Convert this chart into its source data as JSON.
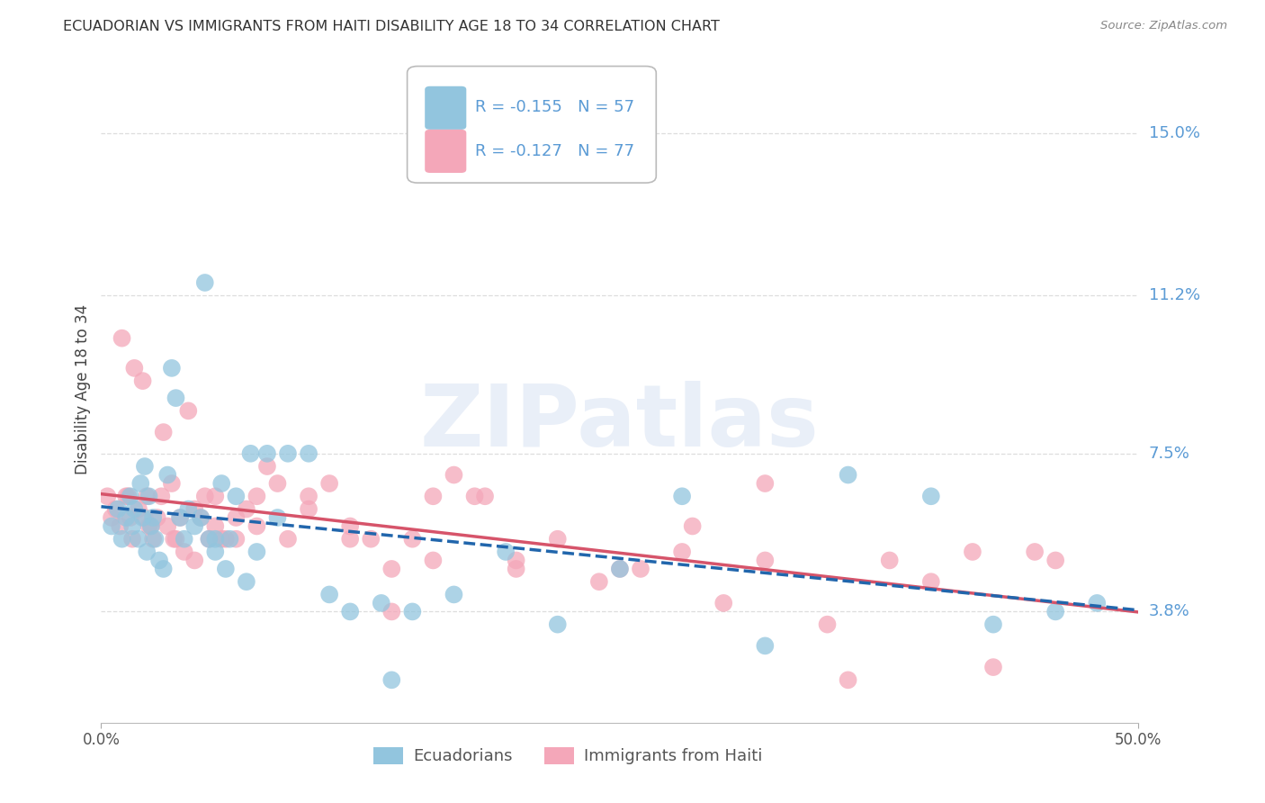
{
  "title": "ECUADORIAN VS IMMIGRANTS FROM HAITI DISABILITY AGE 18 TO 34 CORRELATION CHART",
  "source": "Source: ZipAtlas.com",
  "ylabel": "Disability Age 18 to 34",
  "ytick_labels": [
    "3.8%",
    "7.5%",
    "11.2%",
    "15.0%"
  ],
  "ytick_values": [
    3.8,
    7.5,
    11.2,
    15.0
  ],
  "xmin": 0.0,
  "xmax": 50.0,
  "ymin": 1.2,
  "ymax": 16.8,
  "color_blue": "#92C5DE",
  "color_pink": "#F4A7B9",
  "trendline_blue": "#2166AC",
  "trendline_pink": "#D6546A",
  "R_blue": -0.155,
  "N_blue": 57,
  "R_pink": -0.127,
  "N_pink": 77,
  "legend_label_blue": "Ecuadorians",
  "legend_label_pink": "Immigrants from Haiti",
  "blue_x": [
    0.5,
    0.8,
    1.0,
    1.2,
    1.4,
    1.5,
    1.6,
    1.8,
    1.9,
    2.0,
    2.1,
    2.2,
    2.3,
    2.4,
    2.5,
    2.6,
    2.8,
    3.0,
    3.2,
    3.4,
    3.6,
    3.8,
    4.0,
    4.2,
    4.5,
    4.8,
    5.0,
    5.2,
    5.5,
    5.8,
    6.0,
    6.2,
    6.5,
    7.0,
    7.5,
    8.0,
    9.0,
    10.0,
    11.0,
    12.0,
    13.5,
    15.0,
    17.0,
    19.5,
    22.0,
    25.0,
    28.0,
    32.0,
    36.0,
    40.0,
    43.0,
    46.0,
    48.0,
    7.2,
    8.5,
    5.5,
    14.0
  ],
  "blue_y": [
    5.8,
    6.2,
    5.5,
    6.0,
    6.5,
    5.8,
    6.2,
    5.5,
    6.8,
    6.0,
    7.2,
    5.2,
    6.5,
    5.8,
    6.0,
    5.5,
    5.0,
    4.8,
    7.0,
    9.5,
    8.8,
    6.0,
    5.5,
    6.2,
    5.8,
    6.0,
    11.5,
    5.5,
    5.2,
    6.8,
    4.8,
    5.5,
    6.5,
    4.5,
    5.2,
    7.5,
    7.5,
    7.5,
    4.2,
    3.8,
    4.0,
    3.8,
    4.2,
    5.2,
    3.5,
    4.8,
    6.5,
    3.0,
    7.0,
    6.5,
    3.5,
    3.8,
    4.0,
    7.5,
    6.0,
    5.5,
    2.2
  ],
  "pink_x": [
    0.3,
    0.5,
    0.7,
    0.9,
    1.0,
    1.2,
    1.4,
    1.5,
    1.6,
    1.8,
    2.0,
    2.1,
    2.2,
    2.4,
    2.5,
    2.7,
    2.9,
    3.0,
    3.2,
    3.4,
    3.6,
    3.8,
    4.0,
    4.2,
    4.5,
    4.8,
    5.0,
    5.2,
    5.5,
    5.8,
    6.0,
    6.5,
    7.0,
    7.5,
    8.0,
    9.0,
    10.0,
    11.0,
    12.0,
    13.0,
    14.0,
    15.0,
    16.0,
    17.0,
    18.5,
    20.0,
    22.0,
    24.0,
    26.0,
    28.5,
    30.0,
    32.0,
    35.0,
    40.0,
    43.0,
    46.0,
    36.0,
    1.3,
    2.3,
    3.5,
    4.5,
    5.5,
    6.5,
    7.5,
    8.5,
    10.0,
    12.0,
    14.0,
    16.0,
    18.0,
    20.0,
    25.0,
    28.0,
    32.0,
    38.0,
    42.0,
    45.0
  ],
  "pink_y": [
    6.5,
    6.0,
    6.2,
    5.8,
    10.2,
    6.5,
    6.0,
    5.5,
    9.5,
    6.2,
    9.2,
    6.0,
    6.5,
    5.8,
    5.5,
    6.0,
    6.5,
    8.0,
    5.8,
    6.8,
    5.5,
    6.0,
    5.2,
    8.5,
    6.2,
    6.0,
    6.5,
    5.5,
    5.8,
    5.5,
    5.5,
    5.5,
    6.2,
    5.8,
    7.2,
    5.5,
    6.2,
    6.8,
    5.5,
    5.5,
    4.8,
    5.5,
    5.0,
    7.0,
    6.5,
    5.0,
    5.5,
    4.5,
    4.8,
    5.8,
    4.0,
    6.8,
    3.5,
    4.5,
    2.5,
    5.0,
    2.2,
    6.5,
    5.8,
    5.5,
    5.0,
    6.5,
    6.0,
    6.5,
    6.8,
    6.5,
    5.8,
    3.8,
    6.5,
    6.5,
    4.8,
    4.8,
    5.2,
    5.0,
    5.0,
    5.2,
    5.2
  ],
  "watermark_text": "ZIPatlas",
  "grid_color": "#DDDDDD",
  "ytick_color": "#5B9BD5",
  "title_color": "#333333",
  "source_color": "#888888",
  "xlabel_color": "#555555"
}
